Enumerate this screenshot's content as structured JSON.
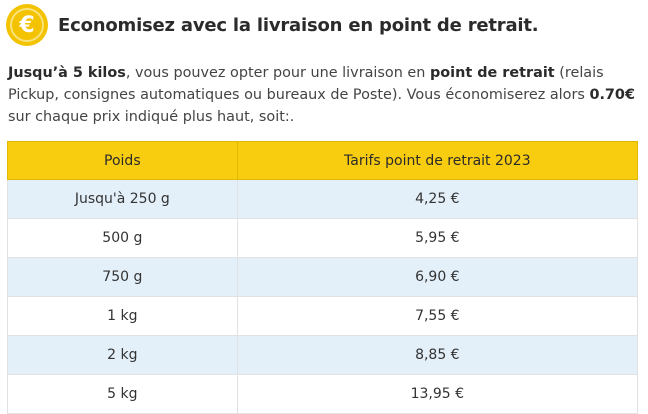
{
  "header": {
    "coin_symbol": "€",
    "coin_icon": "euro-coin-icon",
    "title": "Economisez avec la livraison en point de retrait."
  },
  "intro": {
    "part1": "Jusqu’à 5 kilos",
    "part2": ", vous pouvez opter pour une livraison en ",
    "part3": "point de retrait",
    "part4": " (relais Pickup, consignes automatiques ou bureaux de Poste). Vous économiserez alors ",
    "part5": "0.70€",
    "part6": " sur chaque prix indiqué plus haut, soit:."
  },
  "table": {
    "headers": [
      "Poids",
      "Tarifs point de retrait 2023"
    ],
    "rows": [
      [
        "Jusqu'à 250 g",
        "4,25 €"
      ],
      [
        "500 g",
        "5,95 €"
      ],
      [
        "750 g",
        "6,90 €"
      ],
      [
        "1 kg",
        "7,55 €"
      ],
      [
        "2 kg",
        "8,85 €"
      ],
      [
        "5 kg",
        "13,95 €"
      ]
    ]
  },
  "colors": {
    "accent": "#f8cc0f",
    "row_stripe": "#e4f0f9"
  }
}
